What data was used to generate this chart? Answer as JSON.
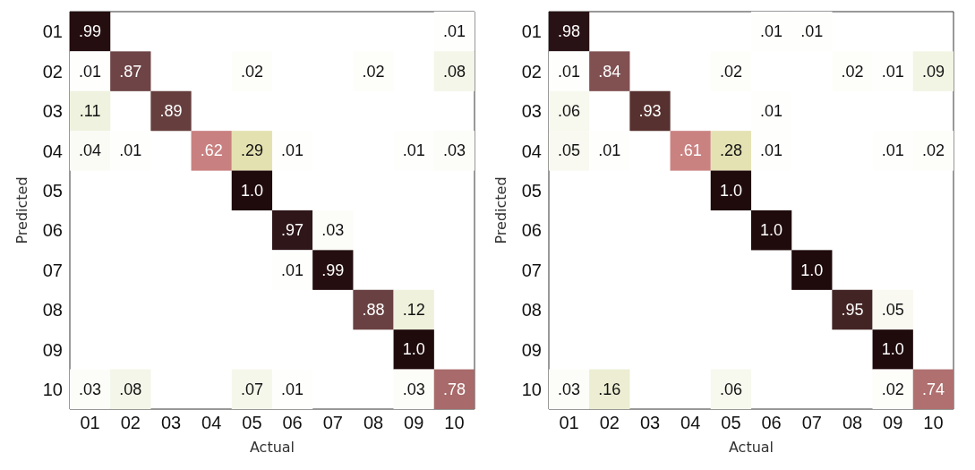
{
  "chart_data": [
    {
      "type": "heatmap",
      "xlabel": "Actual",
      "ylabel": "Predicted",
      "categories": [
        "01",
        "02",
        "03",
        "04",
        "05",
        "06",
        "07",
        "08",
        "09",
        "10"
      ],
      "y_categories": [
        "01",
        "02",
        "03",
        "04",
        "05",
        "06",
        "07",
        "08",
        "09",
        "10"
      ],
      "cells": [
        [
          0.99,
          null,
          null,
          null,
          null,
          null,
          null,
          null,
          null,
          0.01
        ],
        [
          0.01,
          0.87,
          null,
          null,
          0.02,
          null,
          null,
          0.02,
          null,
          0.08
        ],
        [
          0.11,
          null,
          0.89,
          null,
          null,
          null,
          null,
          null,
          null,
          null
        ],
        [
          0.04,
          0.01,
          null,
          0.62,
          0.29,
          0.01,
          null,
          null,
          0.01,
          0.03
        ],
        [
          null,
          null,
          null,
          null,
          1.0,
          null,
          null,
          null,
          null,
          null
        ],
        [
          null,
          null,
          null,
          null,
          null,
          0.97,
          0.03,
          null,
          null,
          null
        ],
        [
          null,
          null,
          null,
          null,
          null,
          0.01,
          0.99,
          null,
          null,
          null
        ],
        [
          null,
          null,
          null,
          null,
          null,
          null,
          null,
          0.88,
          0.12,
          null
        ],
        [
          null,
          null,
          null,
          null,
          null,
          null,
          null,
          null,
          1.0,
          null
        ],
        [
          0.03,
          0.08,
          null,
          null,
          0.07,
          0.01,
          null,
          null,
          0.03,
          0.78
        ]
      ],
      "cell_labels": [
        [
          ".99",
          null,
          null,
          null,
          null,
          null,
          null,
          null,
          null,
          ".01"
        ],
        [
          ".01",
          ".87",
          null,
          null,
          ".02",
          null,
          null,
          ".02",
          null,
          ".08"
        ],
        [
          ".11",
          null,
          ".89",
          null,
          null,
          null,
          null,
          null,
          null,
          null
        ],
        [
          ".04",
          ".01",
          null,
          ".62",
          ".29",
          ".01",
          null,
          null,
          ".01",
          ".03"
        ],
        [
          null,
          null,
          null,
          null,
          "1.0",
          null,
          null,
          null,
          null,
          null
        ],
        [
          null,
          null,
          null,
          null,
          null,
          ".97",
          ".03",
          null,
          null,
          null
        ],
        [
          null,
          null,
          null,
          null,
          null,
          ".01",
          ".99",
          null,
          null,
          null
        ],
        [
          null,
          null,
          null,
          null,
          null,
          null,
          null,
          ".88",
          ".12",
          null
        ],
        [
          null,
          null,
          null,
          null,
          null,
          null,
          null,
          null,
          "1.0",
          null
        ],
        [
          ".03",
          ".08",
          null,
          null,
          ".07",
          ".01",
          null,
          null,
          ".03",
          ".78"
        ]
      ]
    },
    {
      "type": "heatmap",
      "xlabel": "Actual",
      "ylabel": "Predicted",
      "categories": [
        "01",
        "02",
        "03",
        "04",
        "05",
        "06",
        "07",
        "08",
        "09",
        "10"
      ],
      "y_categories": [
        "01",
        "02",
        "03",
        "04",
        "05",
        "06",
        "07",
        "08",
        "09",
        "10"
      ],
      "cells": [
        [
          0.98,
          null,
          null,
          null,
          null,
          0.01,
          0.01,
          null,
          null,
          null
        ],
        [
          0.01,
          0.84,
          null,
          null,
          0.02,
          null,
          null,
          0.02,
          0.01,
          0.09
        ],
        [
          0.06,
          null,
          0.93,
          null,
          null,
          0.01,
          null,
          null,
          null,
          null
        ],
        [
          0.05,
          0.01,
          null,
          0.61,
          0.28,
          0.01,
          null,
          null,
          0.01,
          0.02
        ],
        [
          null,
          null,
          null,
          null,
          1.0,
          null,
          null,
          null,
          null,
          null
        ],
        [
          null,
          null,
          null,
          null,
          null,
          1.0,
          null,
          null,
          null,
          null
        ],
        [
          null,
          null,
          null,
          null,
          null,
          null,
          1.0,
          null,
          null,
          null
        ],
        [
          null,
          null,
          null,
          null,
          null,
          null,
          null,
          0.95,
          0.05,
          null
        ],
        [
          null,
          null,
          null,
          null,
          null,
          null,
          null,
          null,
          1.0,
          null
        ],
        [
          0.03,
          0.16,
          null,
          null,
          0.06,
          null,
          null,
          null,
          0.02,
          0.74
        ]
      ],
      "cell_labels": [
        [
          ".98",
          null,
          null,
          null,
          null,
          ".01",
          ".01",
          null,
          null,
          null
        ],
        [
          ".01",
          ".84",
          null,
          null,
          ".02",
          null,
          null,
          ".02",
          ".01",
          ".09"
        ],
        [
          ".06",
          null,
          ".93",
          null,
          null,
          ".01",
          null,
          null,
          null,
          null
        ],
        [
          ".05",
          ".01",
          null,
          ".61",
          ".28",
          ".01",
          null,
          null,
          ".01",
          ".02"
        ],
        [
          null,
          null,
          null,
          null,
          "1.0",
          null,
          null,
          null,
          null,
          null
        ],
        [
          null,
          null,
          null,
          null,
          null,
          "1.0",
          null,
          null,
          null,
          null
        ],
        [
          null,
          null,
          null,
          null,
          null,
          null,
          "1.0",
          null,
          null,
          null
        ],
        [
          null,
          null,
          null,
          null,
          null,
          null,
          null,
          ".95",
          ".05",
          null
        ],
        [
          null,
          null,
          null,
          null,
          null,
          null,
          null,
          null,
          "1.0",
          null
        ],
        [
          ".03",
          ".16",
          null,
          null,
          ".06",
          null,
          null,
          null,
          ".02",
          ".74"
        ]
      ]
    }
  ]
}
